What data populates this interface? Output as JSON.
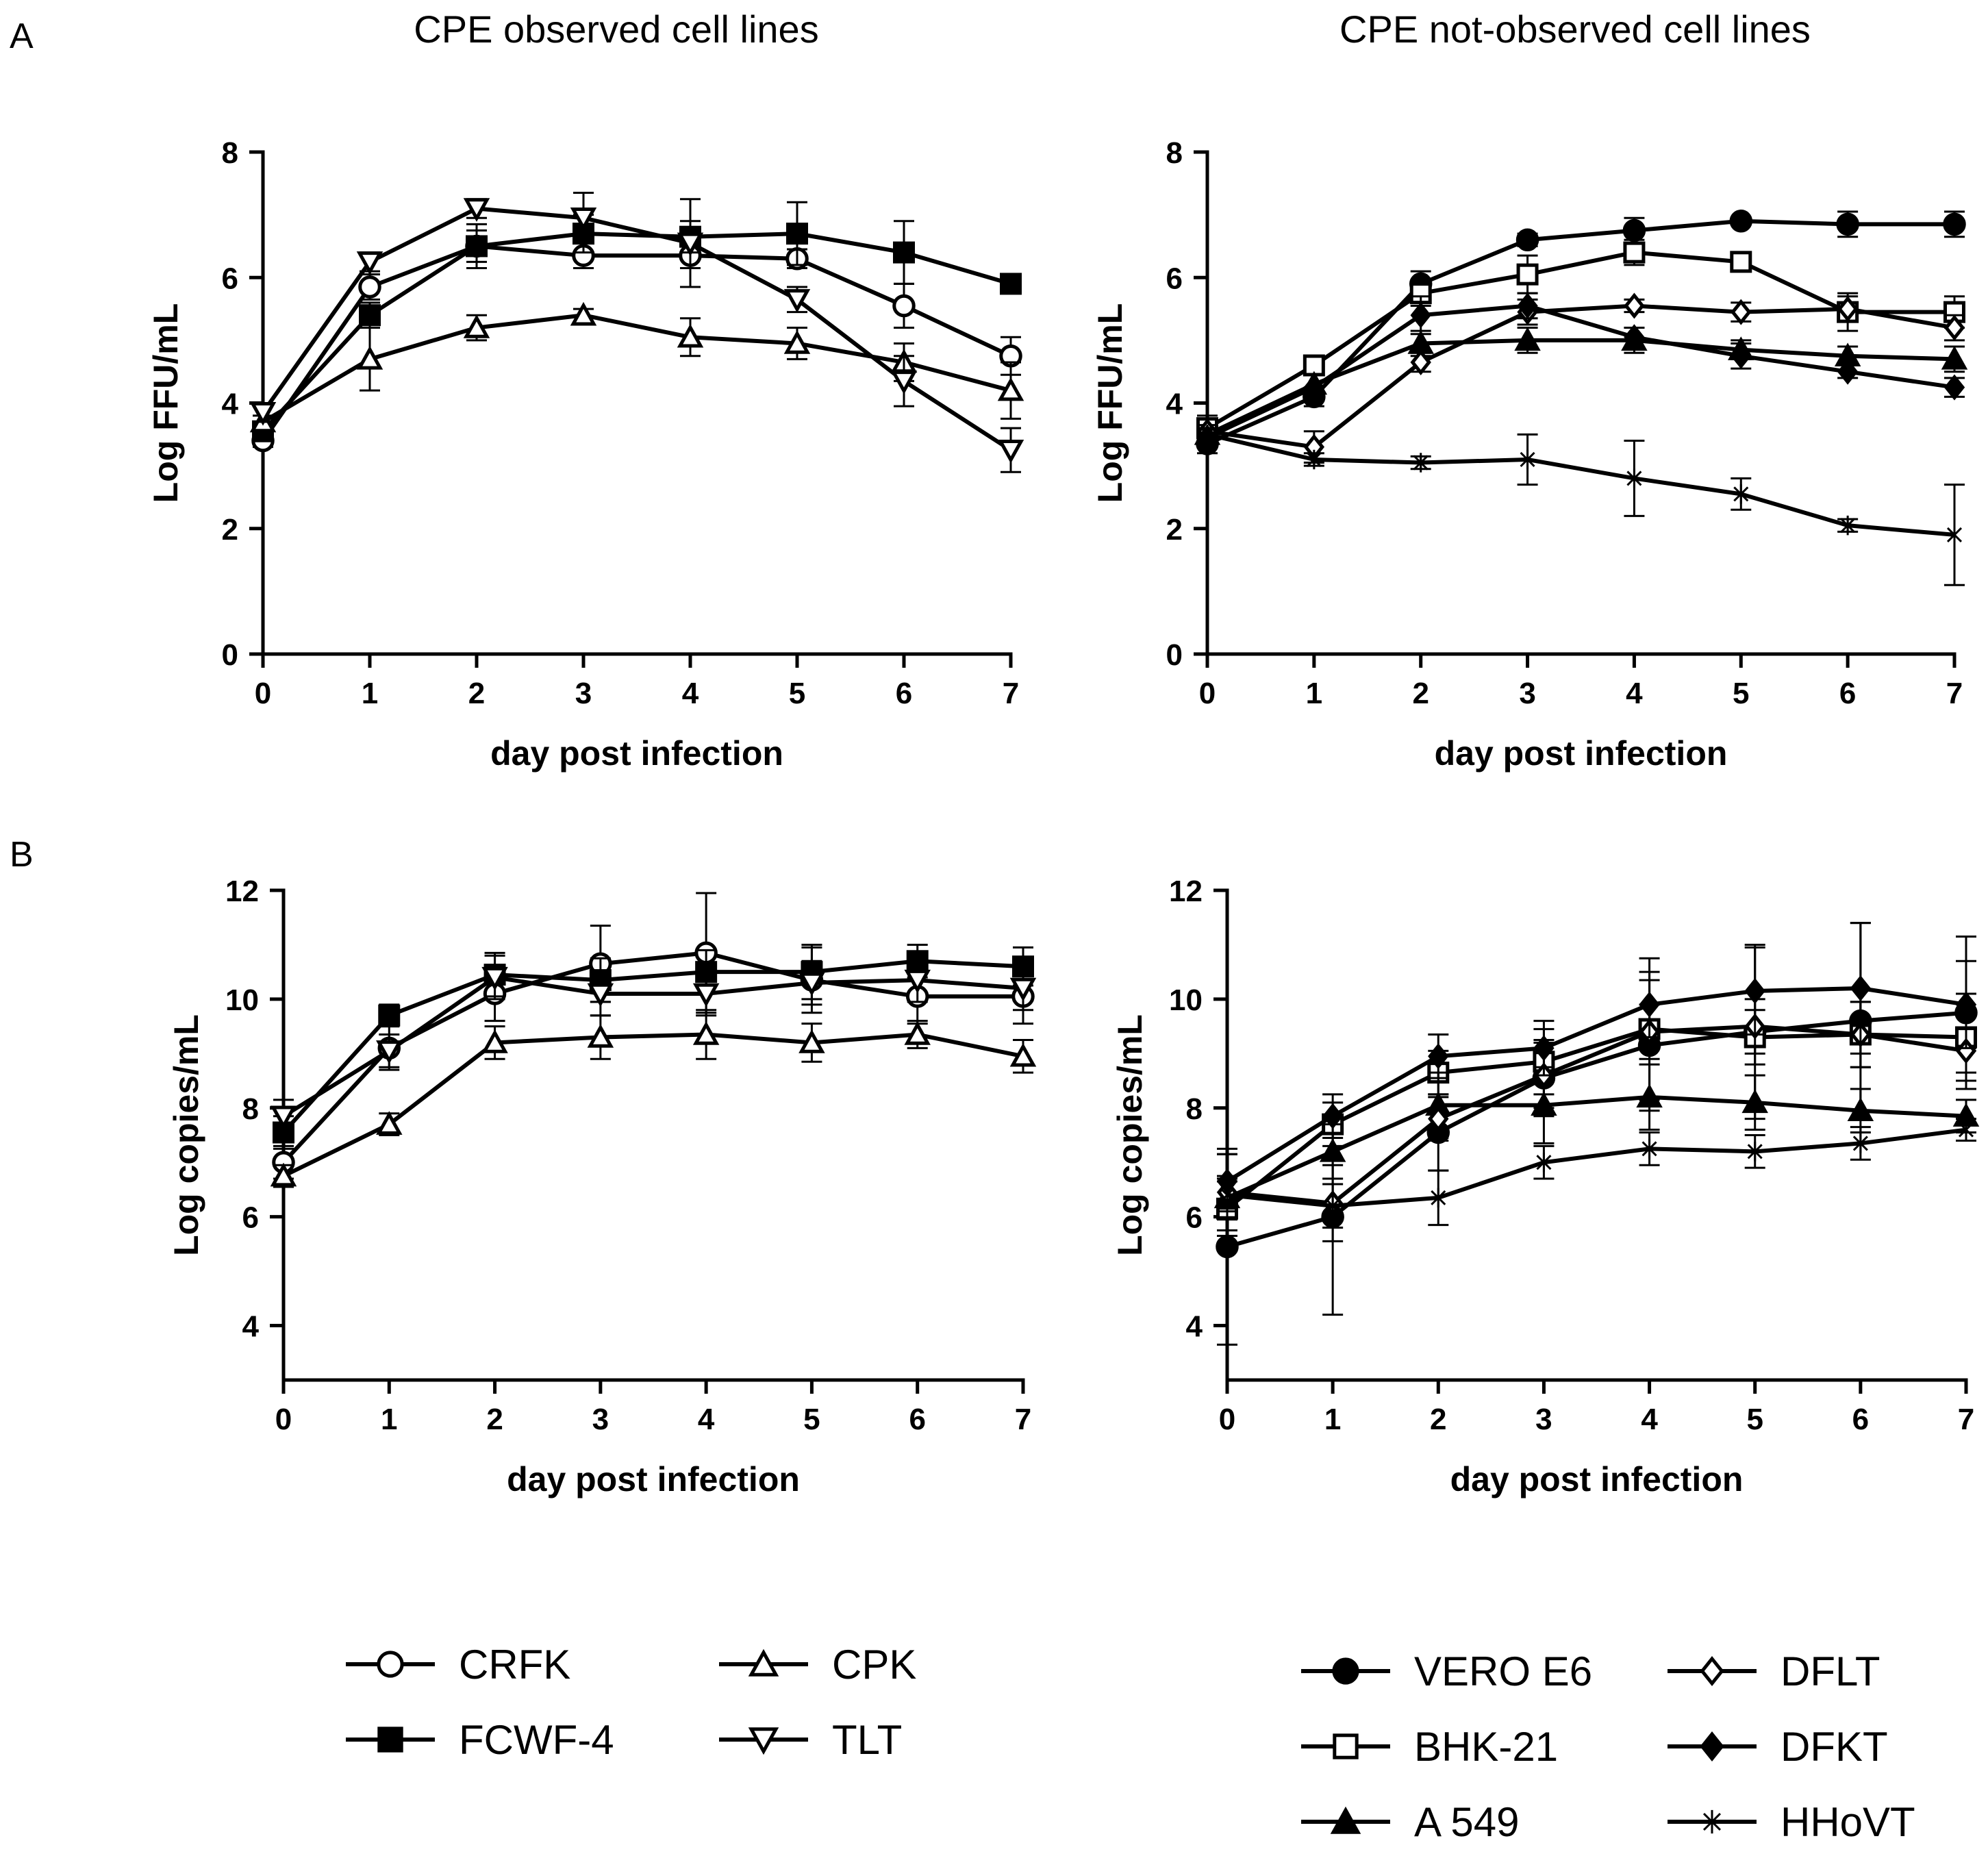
{
  "figure": {
    "panel_A": "A",
    "panel_B": "B",
    "column_titles": [
      "CPE observed cell lines",
      "CPE not-observed cell lines"
    ]
  },
  "legends": [
    {
      "columns": [
        [
          "CRFK",
          "FCWF-4"
        ],
        [
          "CPK",
          "TLT"
        ]
      ]
    },
    {
      "columns": [
        [
          "VERO E6",
          "BHK-21",
          "A 549"
        ],
        [
          "DFLT",
          "DFKT",
          "HHoVT"
        ]
      ]
    }
  ],
  "markers": {
    "CRFK": "circle-open",
    "FCWF-4": "square-filled",
    "CPK": "triangle-open",
    "TLT": "triangle-down-open",
    "VERO E6": "circle-filled",
    "BHK-21": "square-open",
    "A 549": "triangle-filled",
    "DFLT": "diamond-open",
    "DFKT": "diamond-filled",
    "HHoVT": "asterisk"
  },
  "chart_data": [
    {
      "type": "line",
      "panel": "A-left",
      "title": "CPE observed cell lines",
      "xlabel": "day post infection",
      "ylabel": "Log FFU/mL",
      "x": [
        0,
        1,
        2,
        3,
        4,
        5,
        6,
        7
      ],
      "xlim": [
        0,
        7
      ],
      "ylim": [
        0,
        8
      ],
      "yticks": [
        0,
        2,
        4,
        6,
        8
      ],
      "series": [
        {
          "name": "CRFK",
          "values": [
            3.4,
            5.85,
            6.5,
            6.35,
            6.35,
            6.3,
            5.55,
            4.75
          ],
          "err": [
            0.1,
            0.2,
            0.35,
            0.2,
            0.2,
            0.15,
            0.35,
            0.3
          ]
        },
        {
          "name": "FCWF-4",
          "values": [
            3.55,
            5.4,
            6.5,
            6.7,
            6.65,
            6.7,
            6.4,
            5.9
          ],
          "err": [
            0.1,
            0.2,
            0.25,
            0.3,
            0.25,
            0.5,
            0.5,
            0.1
          ]
        },
        {
          "name": "CPK",
          "values": [
            3.7,
            4.7,
            5.2,
            5.4,
            5.05,
            4.95,
            4.65,
            4.2
          ],
          "err": [
            0.1,
            0.5,
            0.2,
            0.1,
            0.3,
            0.25,
            0.3,
            0.45
          ]
        },
        {
          "name": "TLT",
          "values": [
            3.85,
            6.25,
            7.1,
            6.95,
            6.55,
            5.65,
            4.35,
            3.25
          ],
          "err": [
            0.15,
            0.15,
            0.15,
            0.4,
            0.7,
            0.2,
            0.4,
            0.35
          ]
        }
      ]
    },
    {
      "type": "line",
      "panel": "A-right",
      "title": "CPE not-observed cell lines",
      "xlabel": "day post infection",
      "ylabel": "Log FFU/mL",
      "x": [
        0,
        1,
        2,
        3,
        4,
        5,
        6,
        7
      ],
      "xlim": [
        0,
        7
      ],
      "ylim": [
        0,
        8
      ],
      "yticks": [
        0,
        2,
        4,
        6,
        8
      ],
      "series": [
        {
          "name": "VERO E6",
          "values": [
            3.35,
            4.1,
            5.9,
            6.6,
            6.75,
            6.9,
            6.85,
            6.85
          ],
          "err": [
            0.15,
            0.15,
            0.2,
            0.1,
            0.2,
            0.05,
            0.2,
            0.2
          ]
        },
        {
          "name": "BHK-21",
          "values": [
            3.6,
            4.6,
            5.75,
            6.05,
            6.4,
            6.25,
            5.45,
            5.45
          ],
          "err": [
            0.2,
            0.15,
            0.2,
            0.3,
            0.2,
            0.1,
            0.3,
            0.25
          ]
        },
        {
          "name": "A 549",
          "values": [
            3.5,
            4.3,
            4.95,
            5.0,
            5.0,
            4.85,
            4.75,
            4.7
          ],
          "err": [
            0.15,
            0.15,
            0.2,
            0.2,
            0.2,
            0.15,
            0.15,
            0.2
          ]
        },
        {
          "name": "DFLT",
          "values": [
            3.55,
            3.3,
            4.65,
            5.45,
            5.55,
            5.45,
            5.5,
            5.2
          ],
          "err": [
            0.2,
            0.25,
            0.15,
            0.2,
            0.1,
            0.15,
            0.2,
            0.2
          ]
        },
        {
          "name": "DFKT",
          "values": [
            3.45,
            4.25,
            5.4,
            5.55,
            5.05,
            4.75,
            4.5,
            4.25
          ],
          "err": [
            0.15,
            0.2,
            0.3,
            0.2,
            0.15,
            0.2,
            0.1,
            0.15
          ]
        },
        {
          "name": "HHoVT",
          "values": [
            3.5,
            3.1,
            3.05,
            3.1,
            2.8,
            2.55,
            2.05,
            1.9
          ],
          "err": [
            0.1,
            0.1,
            0.1,
            0.4,
            0.6,
            0.25,
            0.1,
            0.8
          ]
        }
      ]
    },
    {
      "type": "line",
      "panel": "B-left",
      "xlabel": "day post infection",
      "ylabel": "Log copies/mL",
      "x": [
        0,
        1,
        2,
        3,
        4,
        5,
        6,
        7
      ],
      "xlim": [
        0,
        7
      ],
      "ylim": [
        3,
        12
      ],
      "yticks": [
        4,
        6,
        8,
        10,
        12
      ],
      "series": [
        {
          "name": "CRFK",
          "values": [
            7.0,
            9.1,
            10.1,
            10.65,
            10.85,
            10.35,
            10.05,
            10.05
          ],
          "err": [
            0.3,
            0.4,
            0.5,
            0.7,
            1.1,
            0.6,
            0.5,
            0.5
          ]
        },
        {
          "name": "FCWF-4",
          "values": [
            7.55,
            9.7,
            10.45,
            10.35,
            10.5,
            10.5,
            10.7,
            10.6
          ],
          "err": [
            0.3,
            0.2,
            0.4,
            0.4,
            0.4,
            0.5,
            0.3,
            0.35
          ]
        },
        {
          "name": "CPK",
          "values": [
            6.75,
            7.7,
            9.2,
            9.3,
            9.35,
            9.2,
            9.35,
            8.95
          ],
          "err": [
            0.2,
            0.2,
            0.3,
            0.4,
            0.45,
            0.35,
            0.25,
            0.3
          ]
        },
        {
          "name": "TLT",
          "values": [
            7.85,
            9.05,
            10.4,
            10.1,
            10.1,
            10.3,
            10.35,
            10.2
          ],
          "err": [
            0.3,
            0.3,
            0.4,
            0.4,
            0.4,
            0.4,
            0.4,
            0.4
          ]
        }
      ]
    },
    {
      "type": "line",
      "panel": "B-right",
      "xlabel": "day post infection",
      "ylabel": "Log copies/mL",
      "x": [
        0,
        1,
        2,
        3,
        4,
        5,
        6,
        7
      ],
      "xlim": [
        0,
        7
      ],
      "ylim": [
        3,
        12
      ],
      "yticks": [
        4,
        6,
        8,
        10,
        12
      ],
      "series": [
        {
          "name": "VERO E6",
          "values": [
            5.45,
            6.0,
            7.55,
            8.55,
            9.15,
            9.4,
            9.6,
            9.75
          ],
          "err": [
            1.8,
            1.8,
            0.7,
            0.7,
            1.2,
            1.6,
            1.8,
            1.4
          ]
        },
        {
          "name": "BHK-21",
          "values": [
            6.15,
            7.7,
            8.65,
            8.85,
            9.45,
            9.3,
            9.35,
            9.3
          ],
          "err": [
            0.5,
            0.4,
            0.4,
            0.6,
            1.3,
            0.5,
            0.6,
            0.8
          ]
        },
        {
          "name": "A 549",
          "values": [
            6.35,
            7.2,
            8.05,
            8.05,
            8.2,
            8.1,
            7.95,
            7.85
          ],
          "err": [
            0.4,
            0.5,
            0.6,
            0.7,
            0.6,
            0.5,
            0.4,
            0.3
          ]
        },
        {
          "name": "DFLT",
          "values": [
            6.45,
            6.25,
            7.8,
            8.6,
            9.4,
            9.5,
            9.35,
            9.05
          ],
          "err": [
            0.7,
            0.7,
            0.4,
            0.6,
            0.5,
            0.5,
            0.6,
            0.4
          ]
        },
        {
          "name": "DFKT",
          "values": [
            6.65,
            7.85,
            8.95,
            9.1,
            9.9,
            10.15,
            10.2,
            9.9
          ],
          "err": [
            0.5,
            0.4,
            0.4,
            0.5,
            0.6,
            0.8,
            1.2,
            0.8
          ]
        },
        {
          "name": "HHoVT",
          "values": [
            6.4,
            6.2,
            6.35,
            7.0,
            7.25,
            7.2,
            7.35,
            7.6
          ],
          "err": [
            0.3,
            0.4,
            0.5,
            0.3,
            0.3,
            0.3,
            0.3,
            0.2
          ]
        }
      ]
    }
  ]
}
